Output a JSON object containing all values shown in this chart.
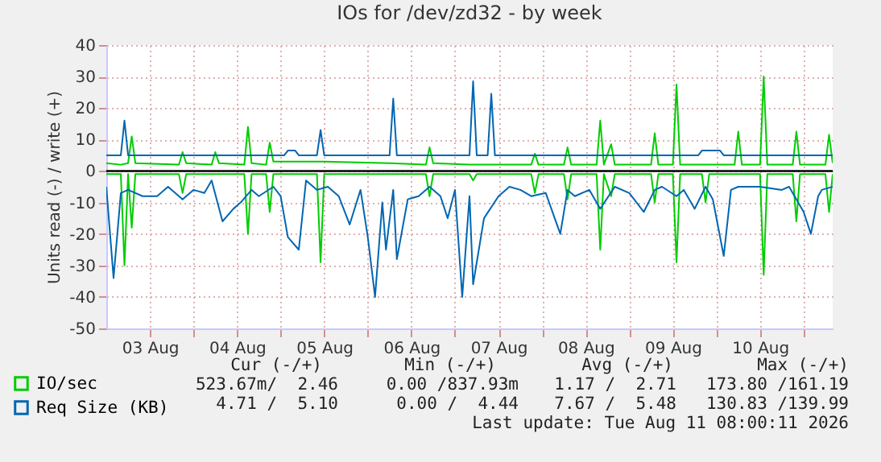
{
  "chart_data": {
    "type": "line",
    "title": "IOs for /dev/zd32 - by week",
    "ylabel": "Units read (-) / write (+)",
    "xlim": [
      "2026-08-03T00:00",
      "2026-08-11T08:00"
    ],
    "xticks": [
      {
        "value": "2026-08-03T12:00",
        "label": "03 Aug"
      },
      {
        "value": "2026-08-04T00:00",
        "label": null
      },
      {
        "value": "2026-08-04T12:00",
        "label": "04 Aug"
      },
      {
        "value": "2026-08-05T00:00",
        "label": null
      },
      {
        "value": "2026-08-05T12:00",
        "label": "05 Aug"
      },
      {
        "value": "2026-08-06T00:00",
        "label": null
      },
      {
        "value": "2026-08-06T12:00",
        "label": "06 Aug"
      },
      {
        "value": "2026-08-07T00:00",
        "label": null
      },
      {
        "value": "2026-08-07T12:00",
        "label": "07 Aug"
      },
      {
        "value": "2026-08-08T00:00",
        "label": null
      },
      {
        "value": "2026-08-08T12:00",
        "label": "08 Aug"
      },
      {
        "value": "2026-08-09T00:00",
        "label": null
      },
      {
        "value": "2026-08-09T12:00",
        "label": "09 Aug"
      },
      {
        "value": "2026-08-10T00:00",
        "label": null
      },
      {
        "value": "2026-08-10T12:00",
        "label": "10 Aug"
      },
      {
        "value": "2026-08-11T00:00",
        "label": null
      }
    ],
    "ylim": [
      -50,
      40
    ],
    "yticks": [
      -50,
      -40,
      -30,
      -20,
      -10,
      0,
      10,
      20,
      30,
      40
    ],
    "grid": true,
    "legend": "bottom",
    "ref_lines": [
      {
        "axis": "y",
        "value": 0,
        "color": "#000000"
      }
    ],
    "series": [
      {
        "name": "IO/sec",
        "color": "#00cc00",
        "x": [
          "2026-08-03T00:00",
          "2026-08-03T04:00",
          "2026-08-03T06:00",
          "2026-08-03T07:00",
          "2026-08-03T08:00",
          "2026-08-03T20:00",
          "2026-08-03T21:00",
          "2026-08-03T22:00",
          "2026-08-04T05:00",
          "2026-08-04T06:00",
          "2026-08-04T07:00",
          "2026-08-04T14:00",
          "2026-08-04T15:00",
          "2026-08-04T16:00",
          "2026-08-04T20:00",
          "2026-08-04T21:00",
          "2026-08-04T22:00",
          "2026-08-05T12:00",
          "2026-08-06T06:00",
          "2026-08-06T16:00",
          "2026-08-06T17:00",
          "2026-08-06T18:00",
          "2026-08-07T04:00",
          "2026-08-07T21:00",
          "2026-08-07T22:00",
          "2026-08-07T23:00",
          "2026-08-08T06:00",
          "2026-08-08T07:00",
          "2026-08-08T08:00",
          "2026-08-08T15:00",
          "2026-08-08T16:00",
          "2026-08-08T17:00",
          "2026-08-08T19:00",
          "2026-08-08T20:00",
          "2026-08-09T06:00",
          "2026-08-09T07:00",
          "2026-08-09T08:00",
          "2026-08-09T12:00",
          "2026-08-09T13:00",
          "2026-08-09T14:00",
          "2026-08-10T05:00",
          "2026-08-10T06:00",
          "2026-08-10T07:00",
          "2026-08-10T12:00",
          "2026-08-10T13:00",
          "2026-08-10T14:00",
          "2026-08-10T21:00",
          "2026-08-10T22:00",
          "2026-08-10T23:00",
          "2026-08-11T06:00",
          "2026-08-11T07:00",
          "2026-08-11T08:00"
        ],
        "values": [
          2.5,
          2,
          2.5,
          11,
          2.5,
          2,
          6,
          2.5,
          2,
          6,
          2.5,
          2,
          14,
          2.5,
          2,
          9,
          3,
          3,
          2.5,
          2,
          7.5,
          2.5,
          2,
          2,
          5.5,
          2,
          2,
          7.5,
          2,
          2,
          16,
          2,
          8.5,
          2,
          2,
          12,
          2,
          2,
          27.5,
          2,
          2,
          12.5,
          2,
          2,
          30,
          2,
          2,
          12.5,
          2,
          2,
          11.5,
          2.5
        ]
      },
      {
        "color": "#00cc00",
        "x": [
          "2026-08-03T00:00",
          "2026-08-03T04:00",
          "2026-08-03T05:00",
          "2026-08-03T06:00",
          "2026-08-03T07:00",
          "2026-08-03T08:00",
          "2026-08-03T20:00",
          "2026-08-03T21:00",
          "2026-08-03T22:00",
          "2026-08-04T14:00",
          "2026-08-04T15:00",
          "2026-08-04T16:00",
          "2026-08-04T20:00",
          "2026-08-04T21:00",
          "2026-08-04T22:00",
          "2026-08-05T10:00",
          "2026-08-05T11:00",
          "2026-08-05T12:00",
          "2026-08-06T16:00",
          "2026-08-06T17:00",
          "2026-08-06T18:00",
          "2026-08-07T04:00",
          "2026-08-07T05:00",
          "2026-08-07T06:00",
          "2026-08-07T21:00",
          "2026-08-07T22:00",
          "2026-08-07T23:00",
          "2026-08-08T06:00",
          "2026-08-08T07:00",
          "2026-08-08T08:00",
          "2026-08-08T15:00",
          "2026-08-08T16:00",
          "2026-08-08T17:00",
          "2026-08-08T19:00",
          "2026-08-08T20:00",
          "2026-08-09T06:00",
          "2026-08-09T07:00",
          "2026-08-09T08:00",
          "2026-08-09T12:00",
          "2026-08-09T13:00",
          "2026-08-09T14:00",
          "2026-08-09T20:00",
          "2026-08-09T21:00",
          "2026-08-09T22:00",
          "2026-08-10T12:00",
          "2026-08-10T13:00",
          "2026-08-10T14:00",
          "2026-08-10T21:00",
          "2026-08-10T22:00",
          "2026-08-10T23:00",
          "2026-08-11T06:00",
          "2026-08-11T07:00",
          "2026-08-11T08:00"
        ],
        "values": [
          -1,
          -1,
          -30,
          -1,
          -18,
          -1,
          -1,
          -7,
          -1,
          -1,
          -20,
          -1,
          -1,
          -13,
          -1,
          -1,
          -29,
          -1,
          -1,
          -8,
          -1,
          -1,
          -3,
          -1,
          -1,
          -7,
          -1,
          -1,
          -9,
          -1,
          -1,
          -25,
          -1,
          -8,
          -1,
          -1,
          -10,
          -1,
          -1,
          -29,
          -1,
          -1,
          -10,
          -1,
          -1,
          -33,
          -1,
          -1,
          -16,
          -1,
          -1,
          -13,
          -1
        ]
      },
      {
        "name": "Req Size (KB)",
        "color": "#0066b3",
        "x": [
          "2026-08-03T00:00",
          "2026-08-03T04:00",
          "2026-08-03T05:00",
          "2026-08-03T06:00",
          "2026-08-05T01:00",
          "2026-08-05T02:00",
          "2026-08-05T04:00",
          "2026-08-05T05:00",
          "2026-08-05T10:00",
          "2026-08-05T11:00",
          "2026-08-05T12:00",
          "2026-08-06T06:00",
          "2026-08-06T07:00",
          "2026-08-06T08:00",
          "2026-08-07T04:00",
          "2026-08-07T05:00",
          "2026-08-07T06:00",
          "2026-08-07T09:00",
          "2026-08-07T10:00",
          "2026-08-07T11:00",
          "2026-08-09T19:00",
          "2026-08-09T20:00",
          "2026-08-10T01:00",
          "2026-08-10T02:00",
          "2026-08-11T08:00"
        ],
        "values": [
          5,
          5,
          16,
          5,
          5,
          6.5,
          6.5,
          5,
          5,
          13,
          5,
          5,
          23,
          5,
          5,
          28.5,
          5,
          5,
          24.5,
          5,
          5,
          6.5,
          6.5,
          5,
          5
        ]
      },
      {
        "color": "#0066b3",
        "x": [
          "2026-08-03T00:00",
          "2026-08-03T02:00",
          "2026-08-03T04:00",
          "2026-08-03T06:00",
          "2026-08-03T10:00",
          "2026-08-03T14:00",
          "2026-08-03T17:00",
          "2026-08-03T21:00",
          "2026-08-04T00:00",
          "2026-08-04T03:00",
          "2026-08-04T05:00",
          "2026-08-04T08:00",
          "2026-08-04T11:00",
          "2026-08-04T13:00",
          "2026-08-04T16:00",
          "2026-08-04T18:00",
          "2026-08-04T22:00",
          "2026-08-05T00:00",
          "2026-08-05T02:00",
          "2026-08-05T05:00",
          "2026-08-05T07:00",
          "2026-08-05T10:00",
          "2026-08-05T13:00",
          "2026-08-05T16:00",
          "2026-08-05T19:00",
          "2026-08-05T22:00",
          "2026-08-06T00:00",
          "2026-08-06T02:00",
          "2026-08-06T04:00",
          "2026-08-06T05:00",
          "2026-08-06T07:00",
          "2026-08-06T08:00",
          "2026-08-06T11:00",
          "2026-08-06T14:00",
          "2026-08-06T17:00",
          "2026-08-06T20:00",
          "2026-08-06T22:00",
          "2026-08-07T00:00",
          "2026-08-07T02:00",
          "2026-08-07T04:00",
          "2026-08-07T05:00",
          "2026-08-07T08:00",
          "2026-08-07T12:00",
          "2026-08-07T15:00",
          "2026-08-07T18:00",
          "2026-08-07T21:00",
          "2026-08-08T01:00",
          "2026-08-08T05:00",
          "2026-08-08T07:00",
          "2026-08-08T09:00",
          "2026-08-08T13:00",
          "2026-08-08T16:00",
          "2026-08-08T20:00",
          "2026-08-09T00:00",
          "2026-08-09T04:00",
          "2026-08-09T07:00",
          "2026-08-09T09:00",
          "2026-08-09T13:00",
          "2026-08-09T15:00",
          "2026-08-09T18:00",
          "2026-08-09T21:00",
          "2026-08-09T23:00",
          "2026-08-10T02:00",
          "2026-08-10T04:00",
          "2026-08-10T06:00",
          "2026-08-10T12:00",
          "2026-08-10T18:00",
          "2026-08-10T20:00",
          "2026-08-11T00:00",
          "2026-08-11T02:00",
          "2026-08-11T04:00",
          "2026-08-11T05:00",
          "2026-08-11T08:00"
        ],
        "values": [
          -5,
          -34,
          -7,
          -6,
          -8,
          -8,
          -5,
          -9,
          -6,
          -7,
          -3,
          -16,
          -12,
          -10,
          -6,
          -8,
          -5,
          -8,
          -21,
          -25,
          -3,
          -6,
          -5,
          -8,
          -17,
          -6,
          -21,
          -40,
          -10,
          -25,
          -6,
          -28,
          -9,
          -8,
          -5,
          -8,
          -15,
          -6,
          -40,
          -8,
          -36,
          -15,
          -8,
          -5,
          -6,
          -8,
          -7,
          -20,
          -6,
          -8,
          -6,
          -12,
          -5,
          -7,
          -13,
          -6,
          -5,
          -8,
          -6,
          -12,
          -5,
          -9,
          -27,
          -6,
          -5,
          -5,
          -6,
          -5,
          -13,
          -20,
          -8,
          -6,
          -5
        ]
      }
    ],
    "annotations": [
      "Cur (-/+)",
      "Min (-/+)",
      "Avg (-/+)",
      "Max (-/+)",
      "523.67m/  2.46",
      "0.00 /837.93m",
      "1.17 /  2.71",
      "173.80 /161.19",
      "4.71 /  5.10",
      "0.00 /  4.44",
      "7.67 /  5.48",
      "130.83 /139.99",
      "Last update: Tue Aug 11 08:00:11 2026"
    ]
  }
}
